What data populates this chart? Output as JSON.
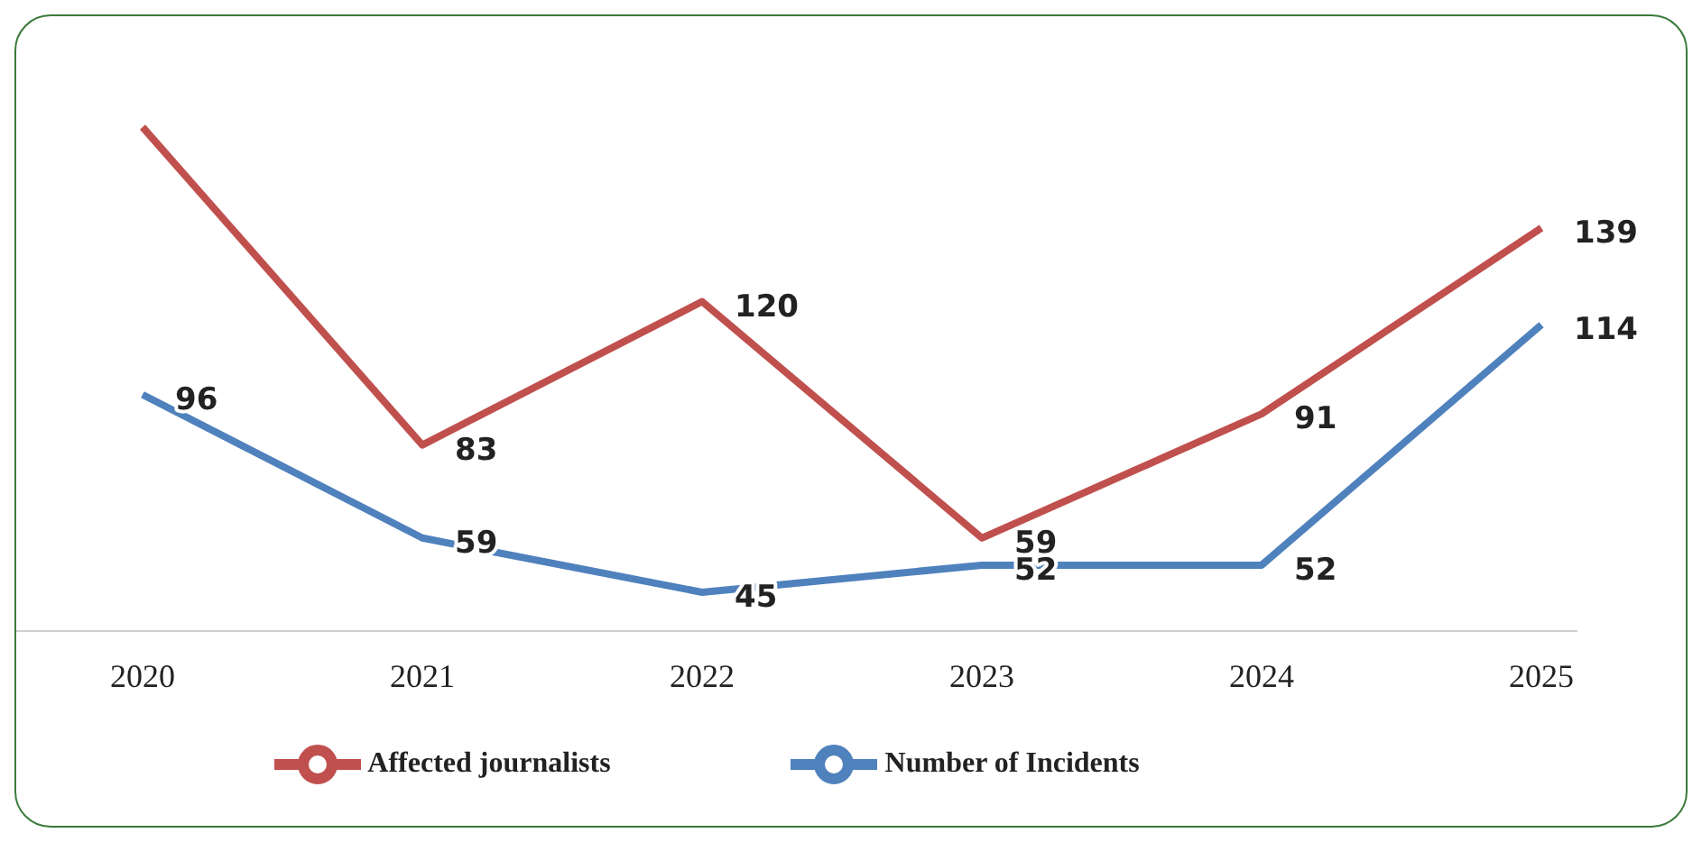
{
  "chart_data": {
    "type": "line",
    "categories": [
      "2020",
      "2021",
      "2022",
      "2023",
      "2024",
      "2025"
    ],
    "series": [
      {
        "name": "Number of Incidents",
        "color": "#4f81bd",
        "values": [
          96,
          59,
          45,
          52,
          52,
          114
        ],
        "value_labels": [
          "96",
          "59",
          "45",
          "52",
          "52",
          "114"
        ]
      },
      {
        "name": "Affected journalists",
        "color": "#c0504d",
        "values": [
          165,
          83,
          120,
          59,
          91,
          139
        ],
        "value_labels": [
          null,
          "83",
          "120",
          "59",
          "91",
          "139"
        ]
      }
    ],
    "tick_labels": "x",
    "legend": "bottom",
    "grid": false,
    "marker": "none",
    "line_style": "solid"
  }
}
